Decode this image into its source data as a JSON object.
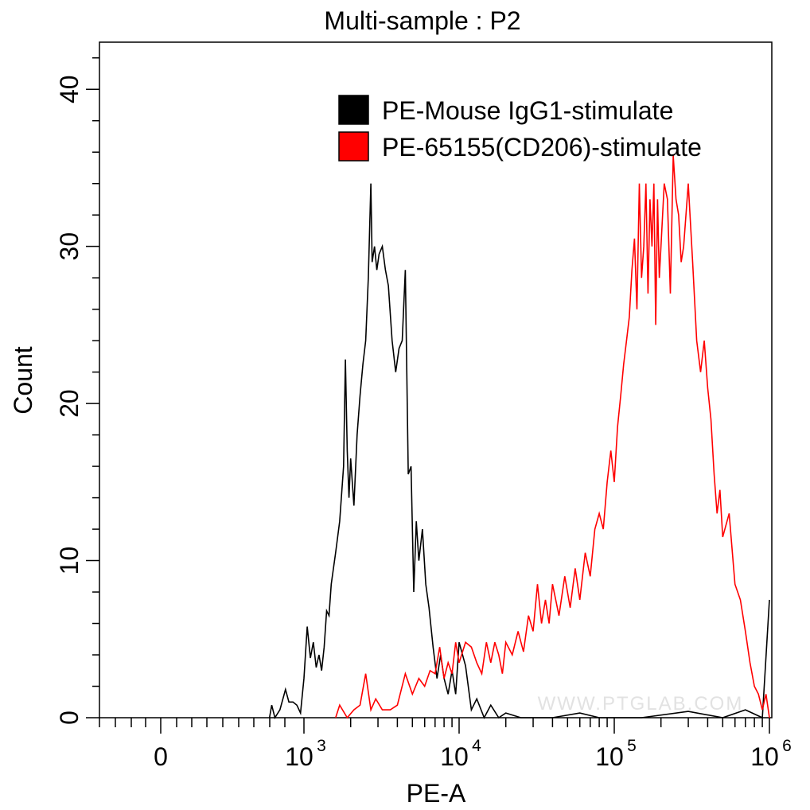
{
  "chart_data": {
    "type": "line",
    "title": "Multi-sample : P2",
    "xlabel": "PE-A",
    "ylabel": "Count",
    "x_scale": "biexponential (log10 above ~10^3)",
    "x_ticks": [
      {
        "value": "0",
        "label": "0",
        "sup": ""
      },
      {
        "value": 1000,
        "label": "10",
        "sup": "3"
      },
      {
        "value": 10000,
        "label": "10",
        "sup": "4"
      },
      {
        "value": 100000,
        "label": "10",
        "sup": "5"
      },
      {
        "value": 1000000,
        "label": "10",
        "sup": "6"
      }
    ],
    "y_ticks": [
      "0",
      "10",
      "20",
      "30",
      "40"
    ],
    "ylim": [
      0,
      43
    ],
    "grid": false,
    "legend_position": "top-right",
    "series": [
      {
        "name": "PE-Mouse IgG1-stimulate",
        "color": "#000000",
        "points": [
          [
            600,
            0
          ],
          [
            620,
            0.8
          ],
          [
            650,
            0
          ],
          [
            700,
            0.5
          ],
          [
            760,
            1.8
          ],
          [
            800,
            1
          ],
          [
            850,
            1
          ],
          [
            900,
            0.8
          ],
          [
            950,
            0.3
          ],
          [
            1000,
            2.5
          ],
          [
            1050,
            5.8
          ],
          [
            1100,
            3.8
          ],
          [
            1150,
            4.8
          ],
          [
            1200,
            3.2
          ],
          [
            1250,
            4
          ],
          [
            1300,
            3
          ],
          [
            1350,
            4.5
          ],
          [
            1400,
            6.8
          ],
          [
            1450,
            6.5
          ],
          [
            1500,
            8.5
          ],
          [
            1600,
            10.5
          ],
          [
            1700,
            12.5
          ],
          [
            1800,
            16
          ],
          [
            1850,
            22.8
          ],
          [
            1900,
            17
          ],
          [
            1950,
            14
          ],
          [
            2000,
            16.5
          ],
          [
            2100,
            13.5
          ],
          [
            2200,
            18
          ],
          [
            2300,
            20.5
          ],
          [
            2400,
            22.5
          ],
          [
            2500,
            24
          ],
          [
            2600,
            28
          ],
          [
            2700,
            34
          ],
          [
            2750,
            29
          ],
          [
            2850,
            30
          ],
          [
            2950,
            28.5
          ],
          [
            3050,
            29.5
          ],
          [
            3200,
            30
          ],
          [
            3350,
            28.5
          ],
          [
            3500,
            27.5
          ],
          [
            3700,
            24
          ],
          [
            3900,
            22
          ],
          [
            4100,
            23.5
          ],
          [
            4300,
            24
          ],
          [
            4500,
            28.5
          ],
          [
            4700,
            15.5
          ],
          [
            4900,
            16
          ],
          [
            5100,
            8
          ],
          [
            5300,
            12.5
          ],
          [
            5500,
            10
          ],
          [
            5800,
            12
          ],
          [
            6100,
            8.5
          ],
          [
            6400,
            7
          ],
          [
            6800,
            4.5
          ],
          [
            7200,
            2.5
          ],
          [
            7600,
            4
          ],
          [
            8000,
            2.5
          ],
          [
            8500,
            1.5
          ],
          [
            9000,
            3
          ],
          [
            9500,
            1.5
          ],
          [
            10000,
            4.8
          ],
          [
            11000,
            3.3
          ],
          [
            12000,
            0.5
          ],
          [
            13000,
            1.2
          ],
          [
            14500,
            0
          ],
          [
            16000,
            0.8
          ],
          [
            18000,
            0
          ],
          [
            20000,
            0.3
          ],
          [
            25000,
            0
          ],
          [
            40000,
            0
          ],
          [
            60000,
            0.3
          ],
          [
            80000,
            0
          ],
          [
            150000,
            0
          ],
          [
            300000,
            0.4
          ],
          [
            500000,
            0
          ],
          [
            700000,
            0.5
          ],
          [
            900000,
            0
          ],
          [
            1000000,
            7.5
          ]
        ]
      },
      {
        "name": "PE-65155(CD206)-stimulate",
        "color": "#ff0000",
        "points": [
          [
            1600,
            0
          ],
          [
            1700,
            0.8
          ],
          [
            1900,
            0
          ],
          [
            2100,
            0.5
          ],
          [
            2300,
            0.8
          ],
          [
            2500,
            2.8
          ],
          [
            2700,
            0.5
          ],
          [
            2900,
            1.2
          ],
          [
            3200,
            0.5
          ],
          [
            3600,
            0.5
          ],
          [
            4000,
            0.8
          ],
          [
            4500,
            2.8
          ],
          [
            5000,
            1.5
          ],
          [
            5500,
            2.5
          ],
          [
            6000,
            2
          ],
          [
            6500,
            3
          ],
          [
            7000,
            2.8
          ],
          [
            7500,
            4.5
          ],
          [
            8000,
            2.5
          ],
          [
            8500,
            3.5
          ],
          [
            9000,
            2.8
          ],
          [
            9500,
            4.8
          ],
          [
            10000,
            3.5
          ],
          [
            11000,
            4.8
          ],
          [
            12000,
            4.5
          ],
          [
            13000,
            3.5
          ],
          [
            14000,
            2.8
          ],
          [
            15000,
            4.8
          ],
          [
            16000,
            3.5
          ],
          [
            17000,
            4.8
          ],
          [
            18000,
            4
          ],
          [
            19000,
            2.8
          ],
          [
            20000,
            4.8
          ],
          [
            22000,
            4
          ],
          [
            24000,
            5.5
          ],
          [
            26000,
            4.2
          ],
          [
            28000,
            6.5
          ],
          [
            30000,
            5.5
          ],
          [
            32000,
            8.5
          ],
          [
            34000,
            6
          ],
          [
            36000,
            7.5
          ],
          [
            38000,
            6
          ],
          [
            40000,
            8.5
          ],
          [
            44000,
            6.5
          ],
          [
            48000,
            9
          ],
          [
            52000,
            7
          ],
          [
            56000,
            9.5
          ],
          [
            60000,
            7.5
          ],
          [
            65000,
            10.5
          ],
          [
            70000,
            9
          ],
          [
            75000,
            12
          ],
          [
            80000,
            13
          ],
          [
            85000,
            12
          ],
          [
            90000,
            15
          ],
          [
            95000,
            17
          ],
          [
            100000,
            15
          ],
          [
            105000,
            18.5
          ],
          [
            110000,
            20.5
          ],
          [
            115000,
            22.5
          ],
          [
            120000,
            24
          ],
          [
            125000,
            25.5
          ],
          [
            130000,
            28.5
          ],
          [
            135000,
            30.5
          ],
          [
            140000,
            26
          ],
          [
            145000,
            34
          ],
          [
            150000,
            28
          ],
          [
            155000,
            30
          ],
          [
            160000,
            34
          ],
          [
            165000,
            27
          ],
          [
            170000,
            33
          ],
          [
            175000,
            30
          ],
          [
            180000,
            34
          ],
          [
            185000,
            25
          ],
          [
            190000,
            33
          ],
          [
            195000,
            28
          ],
          [
            200000,
            30
          ],
          [
            210000,
            34
          ],
          [
            220000,
            33
          ],
          [
            230000,
            27
          ],
          [
            240000,
            35.8
          ],
          [
            250000,
            33
          ],
          [
            260000,
            32
          ],
          [
            270000,
            29
          ],
          [
            280000,
            30
          ],
          [
            300000,
            34
          ],
          [
            320000,
            29
          ],
          [
            340000,
            24
          ],
          [
            360000,
            22
          ],
          [
            380000,
            24
          ],
          [
            400000,
            21
          ],
          [
            420000,
            19
          ],
          [
            440000,
            15.5
          ],
          [
            460000,
            13
          ],
          [
            480000,
            14.5
          ],
          [
            500000,
            11.5
          ],
          [
            550000,
            13
          ],
          [
            600000,
            8.5
          ],
          [
            650000,
            7.5
          ],
          [
            700000,
            5.5
          ],
          [
            750000,
            3.5
          ],
          [
            800000,
            2
          ],
          [
            850000,
            1.5
          ],
          [
            900000,
            0.5
          ],
          [
            950000,
            1.5
          ],
          [
            1000000,
            0
          ]
        ]
      }
    ],
    "watermark": "WWW.PTGLAB.COM"
  }
}
